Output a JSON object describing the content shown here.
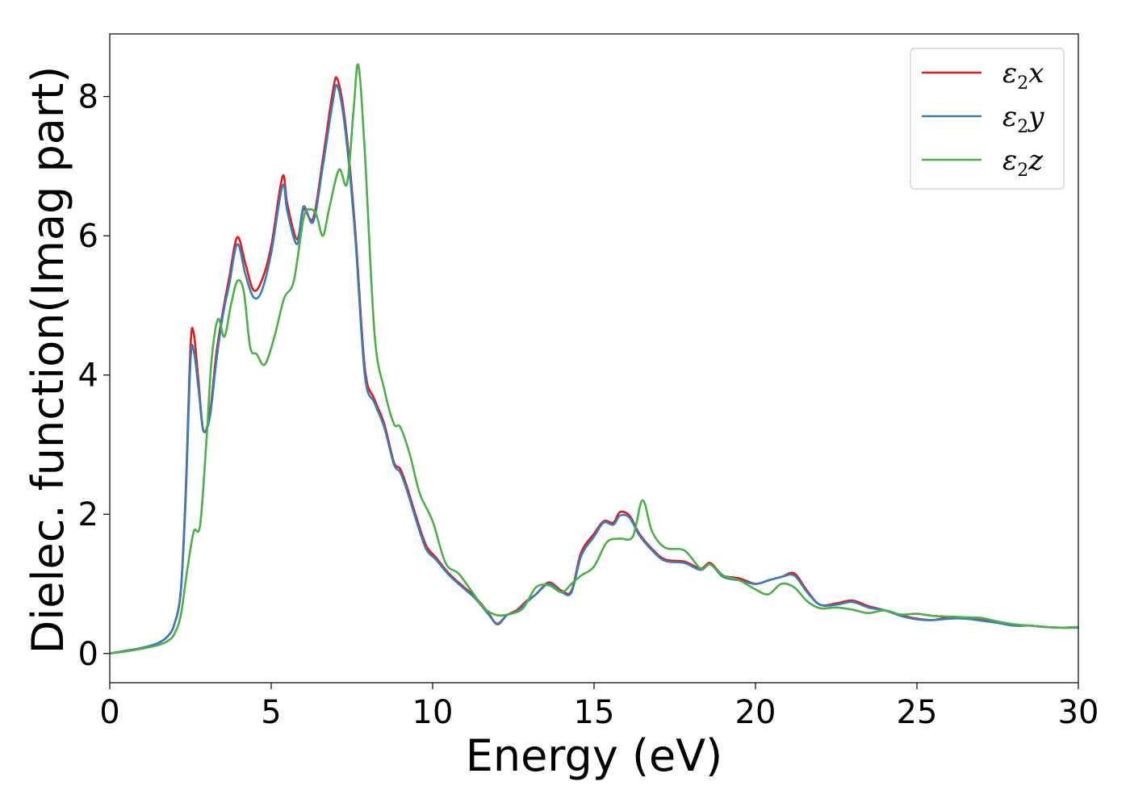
{
  "chart_data": {
    "type": "line",
    "xlabel": "Energy (eV)",
    "ylabel": "Dielec. function(Imag part)",
    "xlim": [
      0,
      30
    ],
    "ylim": [
      -0.42,
      8.9
    ],
    "xticks": [
      0,
      5,
      10,
      15,
      20,
      25,
      30
    ],
    "yticks": [
      0,
      2,
      4,
      6,
      8
    ],
    "grid": false,
    "legend_position": "top-right",
    "series": [
      {
        "name": "ε2x",
        "legend": {
          "base": "ε",
          "sub": "2",
          "tail": "x"
        },
        "color": "#e41a1c",
        "x": [
          0,
          0.5,
          1.0,
          1.5,
          1.8,
          2.0,
          2.2,
          2.35,
          2.5,
          2.6,
          2.75,
          2.9,
          3.1,
          3.3,
          3.5,
          3.7,
          3.95,
          4.2,
          4.45,
          4.7,
          5.0,
          5.35,
          5.5,
          5.8,
          6.0,
          6.3,
          6.6,
          6.9,
          7.05,
          7.3,
          7.6,
          7.9,
          8.2,
          8.5,
          8.8,
          9.0,
          9.2,
          9.5,
          9.8,
          10.1,
          10.5,
          10.9,
          11.3,
          11.7,
          12.0,
          12.3,
          12.6,
          12.9,
          13.2,
          13.6,
          14.0,
          14.3,
          14.6,
          15.0,
          15.3,
          15.6,
          15.8,
          16.1,
          16.4,
          16.8,
          17.2,
          17.8,
          18.3,
          18.6,
          19.0,
          19.5,
          20.0,
          20.4,
          20.8,
          21.2,
          21.6,
          22.0,
          22.5,
          23.0,
          23.5,
          24.0,
          24.5,
          25.0,
          25.5,
          26.0,
          26.5,
          27.0,
          27.5,
          28.0,
          28.5,
          29.0,
          29.5,
          30.0
        ],
        "y": [
          0,
          0.04,
          0.08,
          0.15,
          0.25,
          0.42,
          0.9,
          2.3,
          4.4,
          4.6,
          3.9,
          3.2,
          3.45,
          4.3,
          4.9,
          5.4,
          5.98,
          5.6,
          5.22,
          5.35,
          5.85,
          6.85,
          6.45,
          5.95,
          6.38,
          6.25,
          7.1,
          8.05,
          8.25,
          7.6,
          6.1,
          4.1,
          3.65,
          3.3,
          2.75,
          2.65,
          2.4,
          1.95,
          1.55,
          1.38,
          1.15,
          0.98,
          0.82,
          0.6,
          0.42,
          0.55,
          0.62,
          0.75,
          0.85,
          1.02,
          0.9,
          0.9,
          1.45,
          1.72,
          1.9,
          1.88,
          2.03,
          1.98,
          1.72,
          1.5,
          1.35,
          1.32,
          1.22,
          1.3,
          1.12,
          1.08,
          1.0,
          1.05,
          1.1,
          1.15,
          0.9,
          0.7,
          0.72,
          0.76,
          0.68,
          0.62,
          0.55,
          0.5,
          0.48,
          0.52,
          0.5,
          0.48,
          0.45,
          0.4,
          0.4,
          0.38,
          0.37,
          0.38
        ]
      },
      {
        "name": "ε2y",
        "legend": {
          "base": "ε",
          "sub": "2",
          "tail": "y"
        },
        "color": "#377eb8",
        "x": [
          0,
          0.5,
          1.0,
          1.5,
          1.8,
          2.0,
          2.2,
          2.35,
          2.5,
          2.6,
          2.75,
          2.9,
          3.1,
          3.3,
          3.5,
          3.7,
          3.95,
          4.2,
          4.45,
          4.7,
          5.0,
          5.35,
          5.5,
          5.8,
          6.0,
          6.3,
          6.6,
          6.9,
          7.05,
          7.3,
          7.6,
          7.9,
          8.2,
          8.5,
          8.8,
          9.0,
          9.2,
          9.5,
          9.8,
          10.1,
          10.5,
          10.9,
          11.3,
          11.7,
          12.0,
          12.3,
          12.6,
          12.9,
          13.2,
          13.6,
          14.0,
          14.3,
          14.6,
          15.0,
          15.3,
          15.6,
          15.8,
          16.1,
          16.4,
          16.8,
          17.2,
          17.8,
          18.3,
          18.6,
          19.0,
          19.5,
          20.0,
          20.4,
          20.8,
          21.2,
          21.6,
          22.0,
          22.5,
          23.0,
          23.5,
          24.0,
          24.5,
          25.0,
          25.5,
          26.0,
          26.5,
          27.0,
          27.5,
          28.0,
          28.5,
          29.0,
          29.5,
          30.0
        ],
        "y": [
          0,
          0.04,
          0.08,
          0.15,
          0.25,
          0.42,
          0.9,
          2.2,
          4.2,
          4.35,
          3.8,
          3.2,
          3.4,
          4.2,
          4.85,
          5.3,
          5.88,
          5.45,
          5.12,
          5.2,
          5.75,
          6.72,
          6.35,
          5.88,
          6.42,
          6.2,
          7.0,
          7.9,
          8.15,
          7.5,
          6.0,
          4.0,
          3.6,
          3.25,
          2.72,
          2.6,
          2.35,
          1.9,
          1.5,
          1.35,
          1.13,
          0.96,
          0.8,
          0.58,
          0.43,
          0.55,
          0.6,
          0.73,
          0.85,
          1.0,
          0.88,
          0.88,
          1.4,
          1.68,
          1.88,
          1.85,
          1.98,
          1.95,
          1.7,
          1.48,
          1.33,
          1.3,
          1.2,
          1.28,
          1.1,
          1.05,
          1.0,
          1.05,
          1.1,
          1.12,
          0.88,
          0.7,
          0.7,
          0.74,
          0.66,
          0.62,
          0.54,
          0.49,
          0.48,
          0.5,
          0.5,
          0.47,
          0.44,
          0.4,
          0.4,
          0.38,
          0.37,
          0.37
        ]
      },
      {
        "name": "ε2z",
        "legend": {
          "base": "ε",
          "sub": "2",
          "tail": "z"
        },
        "color": "#4daf4a",
        "x": [
          0,
          0.5,
          1.0,
          1.5,
          1.8,
          2.0,
          2.2,
          2.4,
          2.6,
          2.8,
          3.0,
          3.15,
          3.35,
          3.55,
          3.75,
          3.95,
          4.15,
          4.35,
          4.55,
          4.8,
          5.1,
          5.4,
          5.7,
          6.0,
          6.2,
          6.4,
          6.6,
          6.8,
          7.1,
          7.35,
          7.55,
          7.7,
          7.9,
          8.2,
          8.5,
          8.8,
          9.0,
          9.3,
          9.6,
          10.0,
          10.4,
          10.8,
          11.2,
          11.6,
          12.0,
          12.4,
          12.8,
          13.2,
          13.6,
          14.0,
          14.3,
          14.6,
          15.0,
          15.4,
          15.8,
          16.2,
          16.5,
          16.8,
          17.2,
          17.8,
          18.3,
          18.6,
          19.0,
          19.5,
          20.0,
          20.4,
          20.8,
          21.2,
          21.6,
          22.0,
          22.5,
          23.0,
          23.5,
          24.0,
          24.5,
          25.0,
          25.5,
          26.0,
          26.5,
          27.0,
          27.5,
          28.0,
          28.5,
          29.0,
          29.5,
          30.0
        ],
        "y": [
          0,
          0.03,
          0.07,
          0.12,
          0.18,
          0.28,
          0.55,
          1.2,
          1.75,
          1.85,
          3.1,
          4.2,
          4.8,
          4.55,
          5.0,
          5.35,
          5.2,
          4.4,
          4.3,
          4.15,
          4.55,
          5.1,
          5.35,
          6.25,
          6.38,
          6.3,
          6.0,
          6.4,
          6.95,
          6.75,
          7.8,
          8.45,
          7.2,
          4.6,
          3.8,
          3.3,
          3.25,
          2.85,
          2.3,
          1.9,
          1.3,
          1.15,
          0.9,
          0.65,
          0.55,
          0.57,
          0.65,
          0.95,
          0.98,
          0.88,
          1.0,
          1.12,
          1.25,
          1.6,
          1.65,
          1.68,
          2.2,
          1.75,
          1.52,
          1.48,
          1.22,
          1.28,
          1.12,
          1.05,
          0.92,
          0.85,
          1.0,
          0.95,
          0.75,
          0.65,
          0.66,
          0.63,
          0.58,
          0.62,
          0.56,
          0.57,
          0.54,
          0.53,
          0.52,
          0.51,
          0.46,
          0.42,
          0.4,
          0.38,
          0.37,
          0.38
        ]
      }
    ]
  }
}
